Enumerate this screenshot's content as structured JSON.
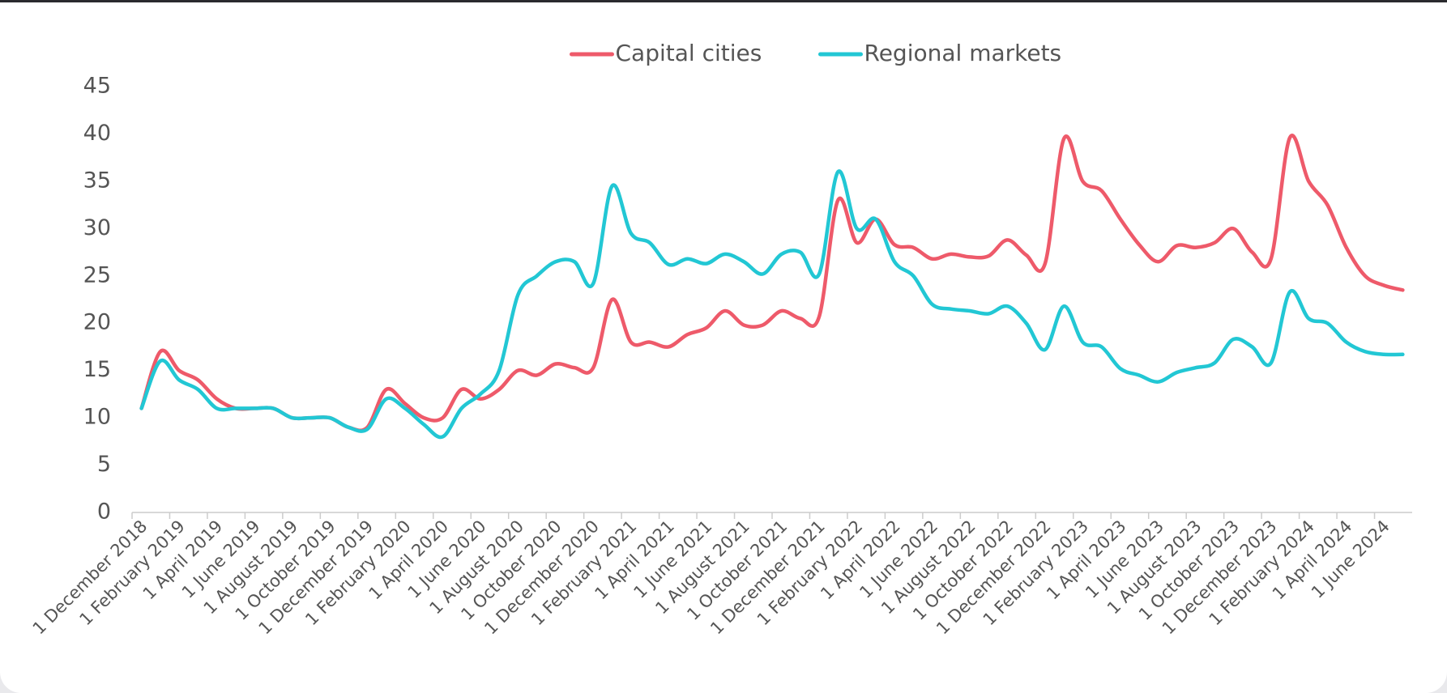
{
  "chart_data": {
    "type": "line",
    "categories": [
      "1 December 2018",
      null,
      "1 February 2019",
      null,
      "1 April 2019",
      null,
      "1 June 2019",
      null,
      "1 August 2019",
      null,
      "1 October 2019",
      null,
      "1 December 2019",
      null,
      "1 February 2020",
      null,
      "1 April 2020",
      null,
      "1 June 2020",
      null,
      "1 August 2020",
      null,
      "1 October 2020",
      null,
      "1 December 2020",
      null,
      "1 February 2021",
      null,
      "1 April 2021",
      null,
      "1 June 2021",
      null,
      "1 August 2021",
      null,
      "1 October 2021",
      null,
      "1 December 2021",
      null,
      "1 February 2022",
      null,
      "1 April 2022",
      null,
      "1 June 2022",
      null,
      "1 August 2022",
      null,
      "1 October 2022",
      null,
      "1 December 2022",
      null,
      "1 February 2023",
      null,
      "1 April 2023",
      null,
      "1 June 2023",
      null,
      "1 August 2023",
      null,
      "1 October 2023",
      null,
      "1 December 2023",
      null,
      "1 February 2024",
      null,
      "1 April 2024",
      null,
      "1 June 2024",
      null
    ],
    "series": [
      {
        "name": "Capital cities",
        "color": "#ee5a6a",
        "values": [
          11,
          17,
          15,
          14,
          12,
          11,
          11,
          11,
          10,
          10,
          10,
          9,
          9,
          13,
          11.5,
          10,
          10,
          13,
          12,
          13,
          15,
          14.5,
          15.7,
          15.3,
          15.3,
          22.5,
          18,
          18,
          17.5,
          18.8,
          19.5,
          21.3,
          19.8,
          19.8,
          21.3,
          20.5,
          20.7,
          33,
          28.5,
          31,
          28.3,
          28,
          26.8,
          27.3,
          27,
          27.1,
          28.8,
          27.2,
          26.3,
          39.5,
          35,
          34,
          31,
          28.3,
          26.5,
          28.2,
          28,
          28.5,
          30,
          27.5,
          26.8,
          39.6,
          35,
          32.5,
          28,
          25,
          24,
          23.5
        ]
      },
      {
        "name": "Regional markets",
        "color": "#22c7d4",
        "values": [
          11,
          16,
          14,
          13,
          11,
          11,
          11,
          11,
          10,
          10,
          10,
          9,
          8.8,
          12,
          11,
          9.3,
          8,
          11,
          12.5,
          15,
          23,
          25,
          26.5,
          26.5,
          24.2,
          34.5,
          29.5,
          28.5,
          26.2,
          26.8,
          26.3,
          27.3,
          26.5,
          25.2,
          27.3,
          27.5,
          25.2,
          36,
          30,
          31,
          26.5,
          25,
          22,
          21.5,
          21.3,
          21,
          21.8,
          20,
          17.2,
          21.8,
          18,
          17.5,
          15.2,
          14.5,
          13.8,
          14.8,
          15.3,
          15.8,
          18.3,
          17.5,
          15.8,
          23.3,
          20.5,
          20,
          18,
          17,
          16.7,
          16.7
        ]
      }
    ],
    "ylim": [
      0,
      45
    ],
    "yticks": [
      0,
      5,
      10,
      15,
      20,
      25,
      30,
      35,
      40,
      45
    ],
    "grid": false,
    "legend": "top"
  }
}
